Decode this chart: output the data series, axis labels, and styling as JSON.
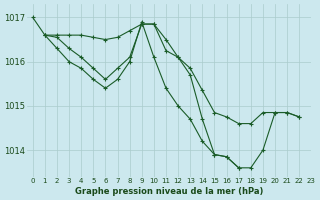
{
  "background_color": "#cce8ee",
  "grid_color": "#aacccc",
  "line_color": "#1a5c28",
  "xlabel": "Graphe pression niveau de la mer (hPa)",
  "ylim": [
    1013.4,
    1017.3
  ],
  "xlim": [
    -0.5,
    23
  ],
  "yticks": [
    1014,
    1015,
    1016,
    1017
  ],
  "xticks": [
    0,
    1,
    2,
    3,
    4,
    5,
    6,
    7,
    8,
    9,
    10,
    11,
    12,
    13,
    14,
    15,
    16,
    17,
    18,
    19,
    20,
    21,
    22,
    23
  ],
  "lines": [
    {
      "x": [
        0,
        1,
        2,
        3,
        4,
        5,
        6,
        7,
        8,
        9,
        10,
        11,
        12,
        13,
        14,
        15,
        16,
        17,
        18,
        19,
        20,
        21,
        22
      ],
      "y": [
        1017.0,
        1016.6,
        1016.6,
        1016.6,
        1016.6,
        1016.55,
        1016.5,
        1016.55,
        1016.7,
        1016.85,
        1016.85,
        1016.5,
        1016.1,
        1015.85,
        1015.35,
        1014.85,
        1014.75,
        1014.6,
        1014.6,
        1014.85,
        1014.85,
        1014.85,
        1014.75
      ]
    },
    {
      "x": [
        1,
        2,
        3,
        4,
        5,
        6,
        7,
        8,
        9,
        10,
        11,
        12,
        13,
        14,
        15,
        16,
        17
      ],
      "y": [
        1016.6,
        1016.55,
        1016.3,
        1016.1,
        1015.85,
        1015.6,
        1015.85,
        1016.1,
        1016.85,
        1016.85,
        1016.25,
        1016.1,
        1015.7,
        1014.7,
        1013.9,
        1013.85,
        1013.6
      ]
    },
    {
      "x": [
        1,
        2,
        3,
        4,
        5,
        6,
        7,
        8,
        9,
        10,
        11,
        12,
        13,
        14,
        15,
        16,
        17,
        18,
        19,
        20,
        21,
        22
      ],
      "y": [
        1016.6,
        1016.3,
        1016.0,
        1015.85,
        1015.6,
        1015.4,
        1015.6,
        1016.0,
        1016.9,
        1016.1,
        1015.4,
        1015.0,
        1014.7,
        1014.2,
        1013.9,
        1013.85,
        1013.6,
        1013.6,
        1014.0,
        1014.85,
        1014.85,
        1014.75
      ]
    }
  ]
}
